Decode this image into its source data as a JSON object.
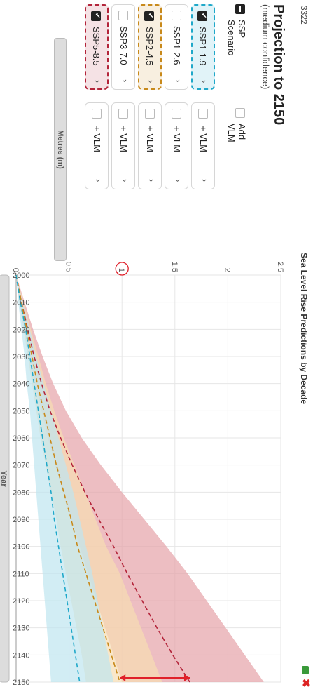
{
  "window": {
    "id": "3322",
    "title": "Sea Level Rise Predictions by Decade"
  },
  "panel": {
    "title": "Projection to 2150",
    "subtitle": "(medium confidence)",
    "ssp_header": "SSP Scenario",
    "vlm_header": "Add VLM",
    "rows": [
      {
        "label": "SSP1-1.9",
        "checked": true,
        "vlm_label": "+ VLM",
        "vlm_checked": false,
        "color": "#1fa8c9"
      },
      {
        "label": "SSP1-2.6",
        "checked": false,
        "vlm_label": "+ VLM",
        "vlm_checked": false,
        "color": "#cccccc"
      },
      {
        "label": "SSP2-4.5",
        "checked": true,
        "vlm_label": "+ VLM",
        "vlm_checked": false,
        "color": "#c8891a"
      },
      {
        "label": "SSP3-7.0",
        "checked": false,
        "vlm_label": "+ VLM",
        "vlm_checked": false,
        "color": "#cccccc"
      },
      {
        "label": "SSP5-8.5",
        "checked": true,
        "vlm_label": "+ VLM",
        "vlm_checked": false,
        "color": "#b3243a"
      }
    ]
  },
  "chart_data": {
    "type": "area",
    "title": "Sea Level Rise Predictions by Decade",
    "xlabel": "Year",
    "ylabel": "Metres (m)",
    "xlim": [
      2000,
      2150
    ],
    "ylim": [
      0,
      2.5
    ],
    "x_ticks": [
      "2000",
      "2010",
      "2020",
      "2030",
      "2040",
      "2050",
      "2060",
      "2070",
      "2080",
      "2090",
      "2100",
      "2110",
      "2120",
      "2130",
      "2140",
      "2150"
    ],
    "y_ticks": [
      "0",
      "0.5",
      "1",
      "1.5",
      "2",
      "2.5"
    ],
    "highlighted_tick": "1",
    "grid": true,
    "x": [
      2000,
      2010,
      2020,
      2030,
      2040,
      2050,
      2060,
      2070,
      2080,
      2090,
      2100,
      2110,
      2120,
      2130,
      2140,
      2150
    ],
    "series": [
      {
        "name": "SSP1-1.9",
        "color": "#1fa8c9",
        "fill": "#bfe6f0",
        "median": [
          0,
          0.04,
          0.09,
          0.13,
          0.17,
          0.21,
          0.25,
          0.29,
          0.33,
          0.36,
          0.4,
          0.44,
          0.48,
          0.52,
          0.56,
          0.6
        ],
        "lower": [
          0,
          0.02,
          0.05,
          0.08,
          0.1,
          0.13,
          0.15,
          0.17,
          0.19,
          0.21,
          0.23,
          0.25,
          0.27,
          0.29,
          0.31,
          0.33
        ],
        "upper": [
          0,
          0.06,
          0.13,
          0.19,
          0.26,
          0.33,
          0.4,
          0.47,
          0.54,
          0.6,
          0.66,
          0.72,
          0.77,
          0.82,
          0.87,
          0.92
        ]
      },
      {
        "name": "SSP2-4.5",
        "color": "#c8891a",
        "fill": "#f6ddb2",
        "median": [
          0,
          0.05,
          0.1,
          0.15,
          0.2,
          0.26,
          0.32,
          0.38,
          0.45,
          0.52,
          0.58,
          0.66,
          0.74,
          0.82,
          0.9,
          0.98
        ],
        "lower": [
          0,
          0.03,
          0.07,
          0.11,
          0.15,
          0.19,
          0.23,
          0.28,
          0.33,
          0.38,
          0.42,
          0.47,
          0.52,
          0.57,
          0.62,
          0.66
        ],
        "upper": [
          0,
          0.07,
          0.14,
          0.21,
          0.28,
          0.36,
          0.45,
          0.55,
          0.65,
          0.75,
          0.85,
          0.98,
          1.08,
          1.18,
          1.28,
          1.38
        ]
      },
      {
        "name": "SSP5-8.5",
        "color": "#b3243a",
        "fill": "#e6a3a8",
        "median": [
          0,
          0.05,
          0.11,
          0.17,
          0.24,
          0.32,
          0.42,
          0.53,
          0.65,
          0.78,
          0.92,
          1.05,
          1.19,
          1.33,
          1.48,
          1.64
        ],
        "lower": [
          0,
          0.03,
          0.08,
          0.13,
          0.18,
          0.24,
          0.3,
          0.37,
          0.44,
          0.52,
          0.6,
          0.68,
          0.76,
          0.84,
          0.92,
          1.0
        ],
        "upper": [
          0,
          0.08,
          0.16,
          0.25,
          0.35,
          0.47,
          0.62,
          0.8,
          1.0,
          1.21,
          1.42,
          1.62,
          1.8,
          1.98,
          2.16,
          2.34
        ]
      }
    ],
    "annotation": {
      "year": 2150,
      "from": 0.98,
      "to": 1.64,
      "color": "#e0202a"
    }
  }
}
